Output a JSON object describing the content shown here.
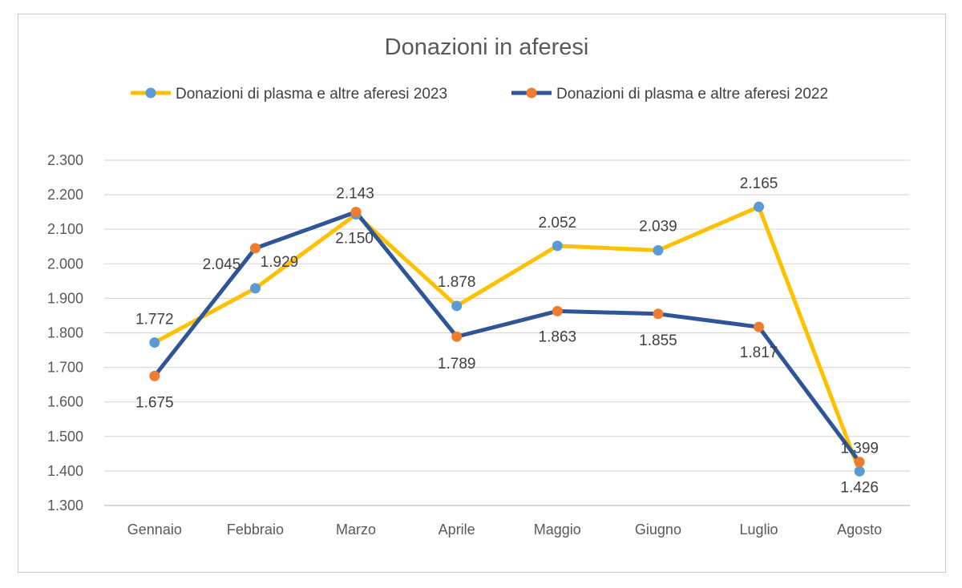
{
  "chart_data": {
    "type": "line",
    "title": "Donazioni in aferesi",
    "xlabel": "",
    "ylabel": "",
    "categories": [
      "Gennaio",
      "Febbraio",
      "Marzo",
      "Aprile",
      "Maggio",
      "Giugno",
      "Luglio",
      "Agosto"
    ],
    "y_ticks": [
      "1.300",
      "1.400",
      "1.500",
      "1.600",
      "1.700",
      "1.800",
      "1.900",
      "2.000",
      "2.100",
      "2.200",
      "2.300"
    ],
    "ylim": [
      1300,
      2300
    ],
    "grid": "horizontal",
    "legend_position": "top",
    "series": [
      {
        "name": "Donazioni di plasma e altre aferesi 2023",
        "values": [
          1772,
          1929,
          2143,
          1878,
          2052,
          2039,
          2165,
          1399
        ],
        "labels": [
          "1.772",
          "1.929",
          "2.143",
          "1.878",
          "2.052",
          "2.039",
          "2.165",
          "1.399"
        ],
        "line_color": "#FFC000",
        "marker_color": "#5B9BD5"
      },
      {
        "name": "Donazioni di plasma e altre aferesi 2022",
        "values": [
          1675,
          2045,
          2150,
          1789,
          1863,
          1855,
          1817,
          1426
        ],
        "labels": [
          "1.675",
          "2.045",
          "2.150",
          "1.789",
          "1.863",
          "1.855",
          "1.817",
          "1.426"
        ],
        "line_color": "#2F5597",
        "marker_color": "#ED7D31"
      }
    ]
  }
}
